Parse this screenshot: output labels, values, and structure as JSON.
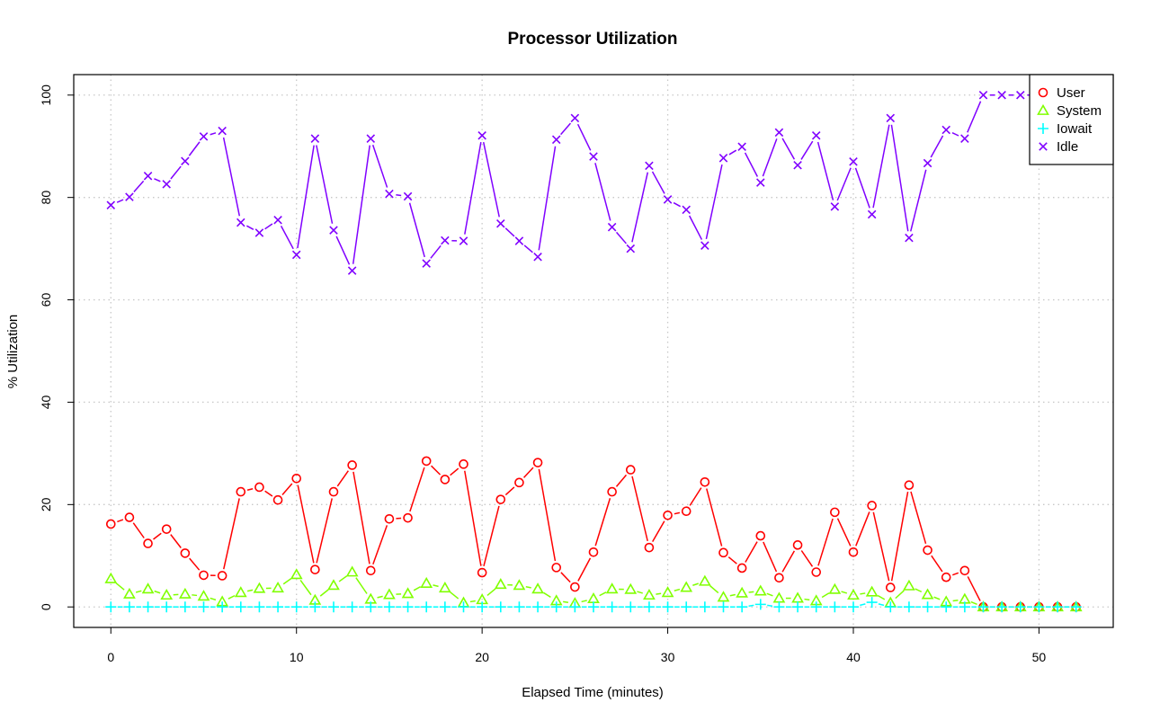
{
  "chart_data": {
    "type": "line",
    "title": "Processor Utilization",
    "xlabel": "Elapsed Time (minutes)",
    "ylabel": "% Utilization",
    "xlim": [
      -2,
      54
    ],
    "ylim": [
      -4,
      104
    ],
    "xticks": [
      0,
      10,
      20,
      30,
      40,
      50
    ],
    "yticks": [
      0,
      20,
      40,
      60,
      80,
      100
    ],
    "grid": true,
    "legend_position": "top-right",
    "x": [
      0,
      1,
      2,
      3,
      4,
      5,
      6,
      7,
      8,
      9,
      10,
      11,
      12,
      13,
      14,
      15,
      16,
      17,
      18,
      19,
      20,
      21,
      22,
      23,
      24,
      25,
      26,
      27,
      28,
      29,
      30,
      31,
      32,
      33,
      34,
      35,
      36,
      37,
      38,
      39,
      40,
      41,
      42,
      43,
      44,
      45,
      46,
      47,
      48,
      49,
      50,
      51,
      52
    ],
    "series": [
      {
        "name": "User",
        "color": "#ff0000",
        "marker": "circle",
        "values": [
          16.2,
          17.5,
          12.4,
          15.2,
          10.5,
          6.2,
          6.1,
          22.5,
          23.4,
          20.9,
          25.1,
          7.3,
          22.5,
          27.7,
          7.1,
          17.2,
          17.4,
          28.5,
          24.9,
          27.9,
          6.7,
          21.0,
          24.3,
          28.2,
          7.7,
          3.9,
          10.7,
          22.5,
          26.8,
          11.6,
          17.9,
          18.7,
          24.4,
          10.6,
          7.6,
          13.9,
          5.7,
          12.1,
          6.8,
          18.5,
          10.7,
          19.8,
          3.8,
          23.8,
          11.1,
          5.8,
          7.1,
          0,
          0,
          0,
          0,
          0,
          0
        ]
      },
      {
        "name": "System",
        "color": "#80ff00",
        "marker": "triangle",
        "values": [
          5.5,
          2.5,
          3.5,
          2.3,
          2.5,
          2.1,
          1.0,
          2.8,
          3.6,
          3.7,
          6.3,
          1.3,
          4.2,
          6.8,
          1.5,
          2.4,
          2.6,
          4.6,
          3.7,
          0.8,
          1.4,
          4.4,
          4.2,
          3.5,
          1.2,
          0.7,
          1.6,
          3.5,
          3.4,
          2.3,
          2.8,
          3.8,
          5.0,
          1.9,
          2.7,
          3.1,
          1.7,
          1.7,
          1.2,
          3.4,
          2.3,
          2.9,
          0.8,
          4.1,
          2.4,
          1.0,
          1.5,
          0,
          0,
          0,
          0,
          0,
          0
        ]
      },
      {
        "name": "Iowait",
        "color": "#00ffff",
        "marker": "plus",
        "values": [
          0,
          0,
          0,
          0,
          0,
          0,
          0,
          0,
          0,
          0,
          0,
          0,
          0,
          0,
          0,
          0,
          0,
          0,
          0,
          0,
          0,
          0,
          0,
          0,
          0,
          0,
          0,
          0,
          0,
          0,
          0,
          0,
          0,
          0,
          0,
          0.5,
          0,
          0,
          0,
          0,
          0,
          0.9,
          0,
          0,
          0,
          0,
          0,
          0,
          0,
          0,
          0,
          0,
          0
        ]
      },
      {
        "name": "Idle",
        "color": "#8000ff",
        "marker": "cross",
        "values": [
          78.5,
          80.1,
          84.2,
          82.6,
          87.1,
          91.9,
          93.0,
          75.1,
          73.1,
          75.6,
          68.8,
          91.5,
          73.6,
          65.7,
          91.5,
          80.7,
          80.2,
          67.1,
          71.6,
          71.5,
          92.1,
          74.9,
          71.5,
          68.4,
          91.3,
          95.5,
          88.0,
          74.2,
          70.0,
          86.2,
          79.6,
          77.6,
          70.6,
          87.7,
          89.9,
          82.9,
          92.7,
          86.3,
          92.1,
          78.2,
          87.0,
          76.7,
          95.5,
          72.1,
          86.7,
          93.2,
          91.5,
          100,
          100,
          100,
          100,
          100,
          100
        ]
      }
    ]
  }
}
